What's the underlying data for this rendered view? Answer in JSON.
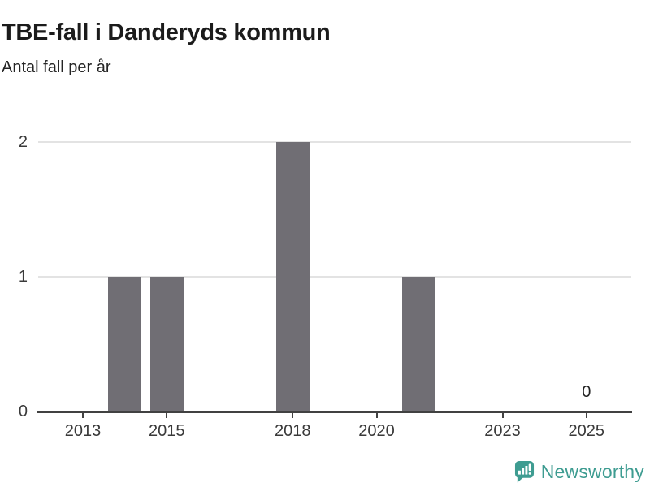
{
  "header": {
    "title": "TBE-fall i Danderyds kommun",
    "subtitle": "Antal fall per år"
  },
  "chart_data": {
    "type": "bar",
    "title": "TBE-fall i Danderyds kommun",
    "subtitle": "Antal fall per år",
    "xlabel": "",
    "ylabel": "Antal fall per år",
    "bars": [
      {
        "year": 2014,
        "value": 1
      },
      {
        "year": 2015,
        "value": 1
      },
      {
        "year": 2018,
        "value": 2
      },
      {
        "year": 2021,
        "value": 1
      },
      {
        "year": 2025,
        "value": 0,
        "data_label": "0"
      }
    ],
    "x_ticks": [
      2013,
      2015,
      2018,
      2020,
      2023,
      2025
    ],
    "x_tick_labels": [
      "2013",
      "2015",
      "2018",
      "2020",
      "2023",
      "2025"
    ],
    "y_ticks": [
      0,
      1,
      2
    ],
    "y_tick_labels": [
      "0",
      "1",
      "2"
    ],
    "ylim": [
      0,
      2
    ],
    "grid": true,
    "legend_position": "none",
    "colors": {
      "bar": "#706E74",
      "gridline": "#E3E3E3",
      "axis": "#414141",
      "tick_text": "#3a3a3a"
    }
  },
  "footer": {
    "brand": "Newsworthy",
    "brand_color": "#3E9C91",
    "logo_icon": "newsworthy-bar-chart-bubble-icon"
  }
}
